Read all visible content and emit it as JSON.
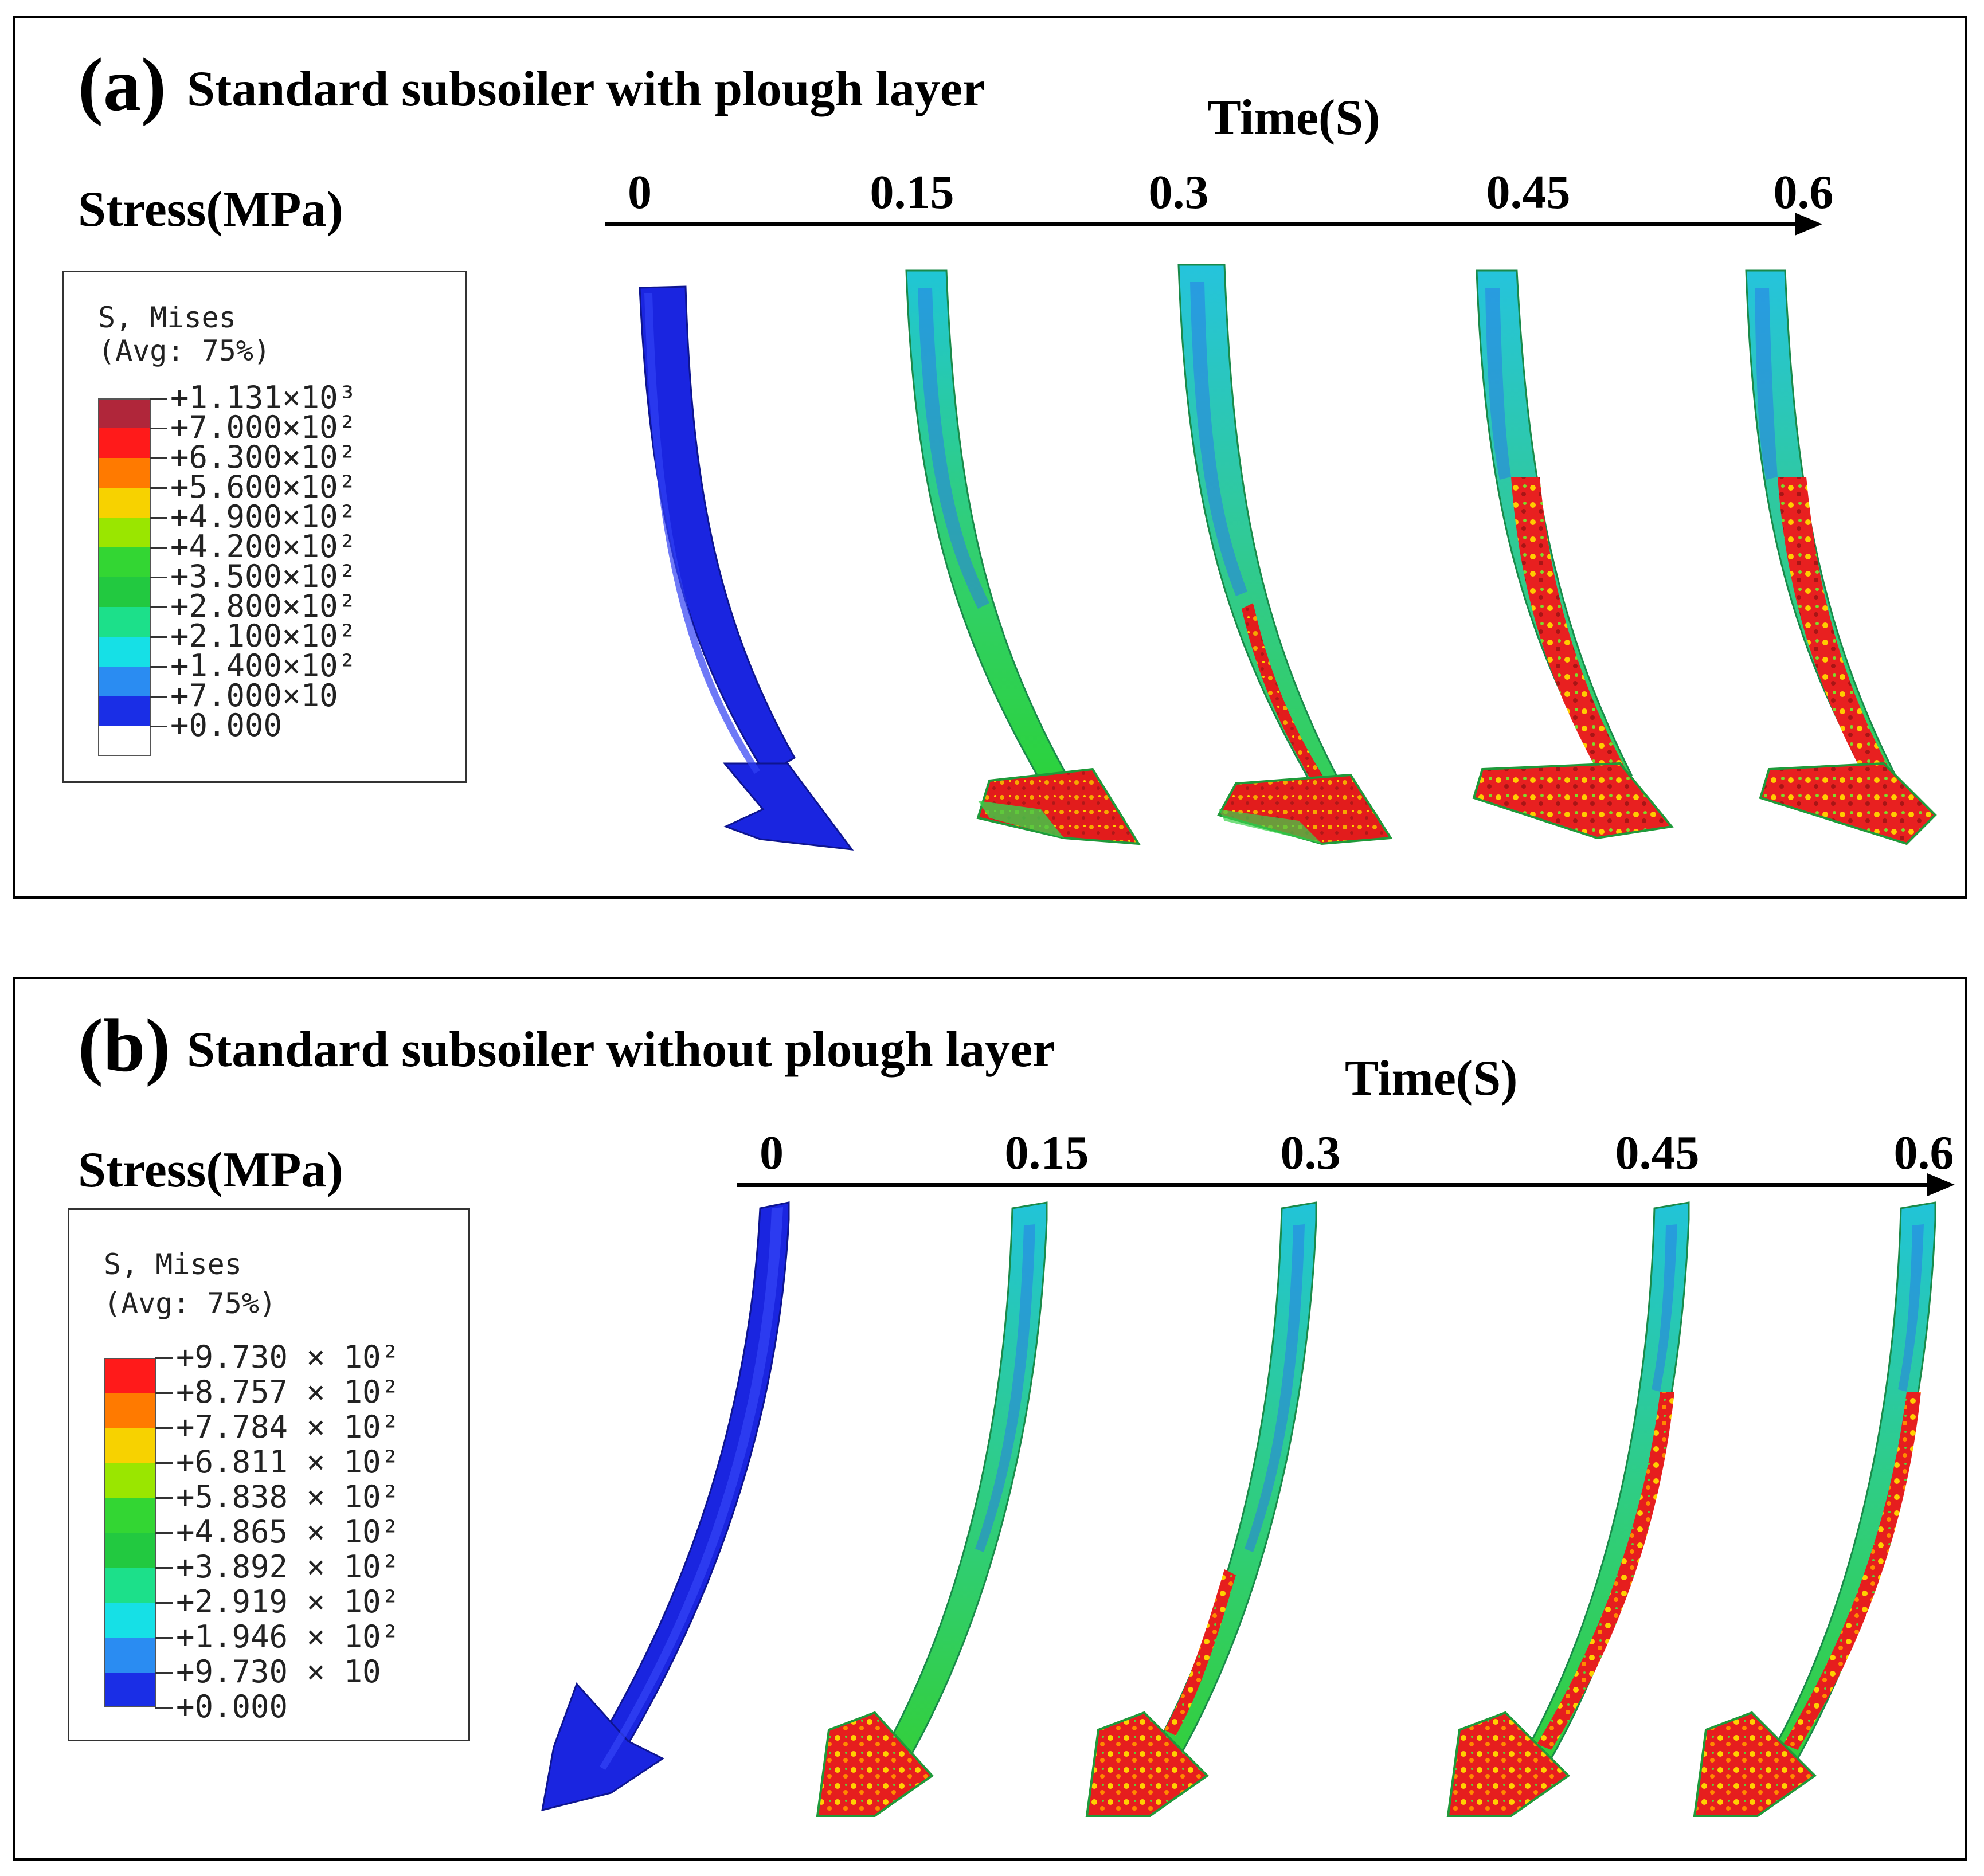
{
  "panels": [
    {
      "tag": "(a)",
      "title": "Standard subsoiler with plough layer",
      "stress_label": "Stress(MPa)",
      "time_label": "Time(S)",
      "time_ticks": [
        "0",
        "0.15",
        "0.3",
        "0.45",
        "0.6"
      ],
      "legend": {
        "line1": "S, Mises",
        "line2": "(Avg: 75%)",
        "values": [
          "+1.131×10³",
          "+7.000×10²",
          "+6.300×10²",
          "+5.600×10²",
          "+4.900×10²",
          "+4.200×10²",
          "+3.500×10²",
          "+2.800×10²",
          "+2.100×10²",
          "+1.400×10²",
          "+7.000×10",
          "+0.000"
        ],
        "colors": [
          "#b0263a",
          "#ff1a1a",
          "#ff7a00",
          "#f7d200",
          "#9ae600",
          "#33d633",
          "#22c940",
          "#1ce08a",
          "#16e0e6",
          "#2a8cf2",
          "#1a2ee6",
          "#ffffff"
        ]
      }
    },
    {
      "tag": "(b)",
      "title": "Standard subsoiler without plough layer",
      "stress_label": "Stress(MPa)",
      "time_label": "Time(S)",
      "time_ticks": [
        "0",
        "0.15",
        "0.3",
        "0.45",
        "0.6"
      ],
      "legend": {
        "line1": "S, Mises",
        "line2": "(Avg: 75%)",
        "values": [
          "+9.730 × 10²",
          "+8.757 × 10²",
          "+7.784 × 10²",
          "+6.811 × 10²",
          "+5.838 × 10²",
          "+4.865 × 10²",
          "+3.892 × 10²",
          "+2.919 × 10²",
          "+1.946 × 10²",
          "+9.730 × 10",
          "+0.000"
        ],
        "colors": [
          "#ff1a1a",
          "#ff7a00",
          "#f7d200",
          "#9ae600",
          "#33d633",
          "#22c940",
          "#1ce08a",
          "#16e0e6",
          "#2a8cf2",
          "#1a2ee6"
        ]
      }
    }
  ]
}
